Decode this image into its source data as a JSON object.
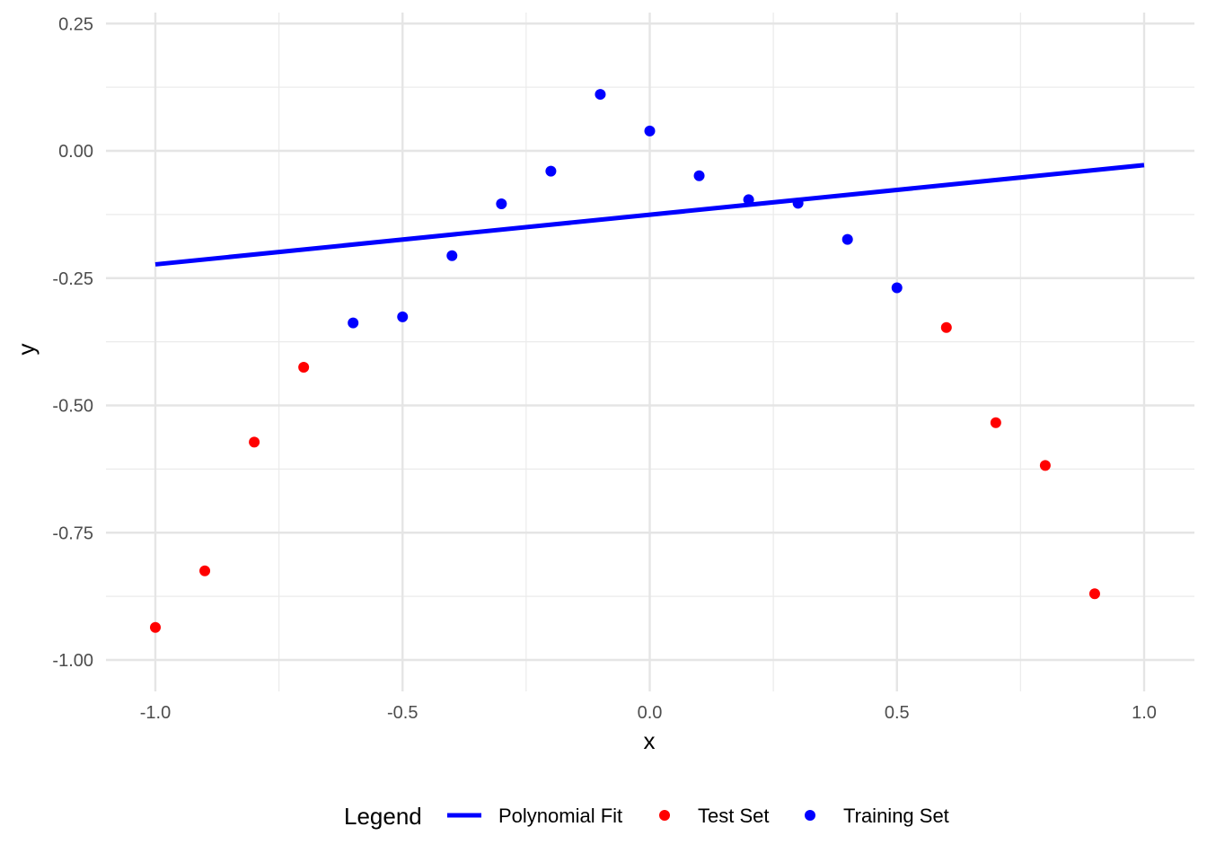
{
  "chart_data": {
    "type": "scatter",
    "xlabel": "x",
    "ylabel": "y",
    "xlim": [
      -1.08,
      1.1
    ],
    "ylim": [
      -1.05,
      0.27
    ],
    "x_ticks": [
      -1.0,
      -0.5,
      0.0,
      0.5,
      1.0
    ],
    "x_tick_labels": [
      "-1.0",
      "-0.5",
      "0.0",
      "0.5",
      "1.0"
    ],
    "y_ticks": [
      0.25,
      0.0,
      -0.25,
      -0.5,
      -0.75,
      -1.0
    ],
    "y_tick_labels": [
      "0.25",
      "0.00",
      "-0.25",
      "-0.50",
      "-0.75",
      "-1.00"
    ],
    "grid": true,
    "legend": {
      "title": "Legend",
      "position": "bottom",
      "entries": [
        "Polynomial Fit",
        "Test Set",
        "Training Set"
      ]
    },
    "series": [
      {
        "name": "Polynomial Fit",
        "kind": "line",
        "color": "#0000ff",
        "points": [
          [
            -1.0,
            -0.223
          ],
          [
            1.0,
            -0.028
          ]
        ]
      },
      {
        "name": "Test Set",
        "kind": "scatter",
        "color": "#ff0000",
        "points": [
          [
            -1.0,
            -0.936
          ],
          [
            -0.9,
            -0.825
          ],
          [
            -0.8,
            -0.572
          ],
          [
            -0.7,
            -0.425
          ],
          [
            0.6,
            -0.347
          ],
          [
            0.7,
            -0.534
          ],
          [
            0.8,
            -0.618
          ],
          [
            0.9,
            -0.87
          ]
        ]
      },
      {
        "name": "Training Set",
        "kind": "scatter",
        "color": "#0000ff",
        "points": [
          [
            -0.6,
            -0.338
          ],
          [
            -0.5,
            -0.326
          ],
          [
            -0.4,
            -0.206
          ],
          [
            -0.3,
            -0.104
          ],
          [
            -0.2,
            -0.04
          ],
          [
            -0.1,
            0.111
          ],
          [
            0.0,
            0.039
          ],
          [
            0.1,
            -0.049
          ],
          [
            0.2,
            -0.096
          ],
          [
            0.3,
            -0.103
          ],
          [
            0.4,
            -0.174
          ],
          [
            0.5,
            -0.269
          ]
        ]
      }
    ]
  }
}
